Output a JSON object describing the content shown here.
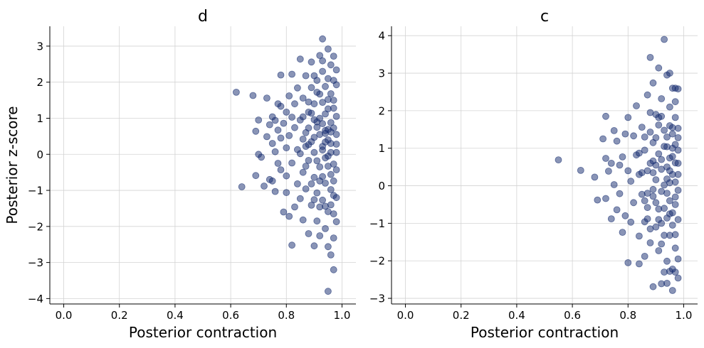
{
  "chart_data": [
    {
      "type": "scatter",
      "title": "d",
      "xlabel": "Posterior contraction",
      "ylabel": "Posterior z-score",
      "xlim": [
        -0.05,
        1.05
      ],
      "ylim": [
        -4.15,
        3.55
      ],
      "xticks": [
        0.0,
        0.2,
        0.4,
        0.6,
        0.8,
        1.0
      ],
      "xtick_labels": [
        "0.0",
        "0.2",
        "0.4",
        "0.6",
        "0.8",
        "1.0"
      ],
      "yticks": [
        -4,
        -3,
        -2,
        -1,
        0,
        1,
        2,
        3
      ],
      "ytick_labels": [
        "−4",
        "−3",
        "−2",
        "−1",
        "0",
        "1",
        "2",
        "3"
      ],
      "grid": true,
      "marker_color": "#132a6e",
      "marker_alpha": 0.5,
      "points": [
        [
          0.62,
          1.72
        ],
        [
          0.64,
          -0.9
        ],
        [
          0.68,
          1.63
        ],
        [
          0.69,
          0.64
        ],
        [
          0.69,
          -0.59
        ],
        [
          0.7,
          0.95
        ],
        [
          0.7,
          0.0
        ],
        [
          0.71,
          -0.08
        ],
        [
          0.72,
          -0.88
        ],
        [
          0.73,
          1.56
        ],
        [
          0.73,
          0.49
        ],
        [
          0.74,
          0.82
        ],
        [
          0.74,
          -0.7
        ],
        [
          0.75,
          1.04
        ],
        [
          0.75,
          0.3
        ],
        [
          0.75,
          -0.74
        ],
        [
          0.76,
          0.94
        ],
        [
          0.76,
          0.07
        ],
        [
          0.76,
          -1.03
        ],
        [
          0.77,
          1.4
        ],
        [
          0.77,
          0.67
        ],
        [
          0.77,
          -0.25
        ],
        [
          0.78,
          1.33
        ],
        [
          0.78,
          0.45
        ],
        [
          0.78,
          -0.43
        ],
        [
          0.78,
          2.2
        ],
        [
          0.79,
          -1.6
        ],
        [
          0.79,
          0.86
        ],
        [
          0.8,
          1.17
        ],
        [
          0.8,
          0.18
        ],
        [
          0.8,
          -0.6
        ],
        [
          0.8,
          -1.06
        ],
        [
          0.81,
          1.62
        ],
        [
          0.81,
          0.52
        ],
        [
          0.81,
          -1.72
        ],
        [
          0.82,
          2.22
        ],
        [
          0.82,
          1.03
        ],
        [
          0.82,
          -0.24
        ],
        [
          0.82,
          -2.52
        ],
        [
          0.83,
          0.74
        ],
        [
          0.83,
          -1.46
        ],
        [
          0.83,
          1.4
        ],
        [
          0.84,
          0.13
        ],
        [
          0.84,
          -0.82
        ],
        [
          0.84,
          1.84
        ],
        [
          0.85,
          0.95
        ],
        [
          0.85,
          -1.23
        ],
        [
          0.85,
          2.64
        ],
        [
          0.86,
          0.42
        ],
        [
          0.86,
          -0.5
        ],
        [
          0.86,
          1.56
        ],
        [
          0.86,
          -1.82
        ],
        [
          0.87,
          0.22
        ],
        [
          0.87,
          2.18
        ],
        [
          0.87,
          -0.96
        ],
        [
          0.88,
          1.17
        ],
        [
          0.88,
          -0.17
        ],
        [
          0.88,
          -2.2
        ],
        [
          0.88,
          0.73
        ],
        [
          0.89,
          1.85
        ],
        [
          0.89,
          -1.41
        ],
        [
          0.89,
          0.35
        ],
        [
          0.89,
          2.56
        ],
        [
          0.9,
          -0.64
        ],
        [
          0.9,
          1.4
        ],
        [
          0.9,
          -2.54
        ],
        [
          0.9,
          0.05
        ],
        [
          0.91,
          2.05
        ],
        [
          0.91,
          -1.07
        ],
        [
          0.91,
          0.9
        ],
        [
          0.91,
          -1.85
        ],
        [
          0.92,
          2.74
        ],
        [
          0.92,
          0.55
        ],
        [
          0.92,
          -0.35
        ],
        [
          0.92,
          1.67
        ],
        [
          0.93,
          3.2
        ],
        [
          0.93,
          -1.27
        ],
        [
          0.93,
          0.22
        ],
        [
          0.93,
          2.3
        ],
        [
          0.94,
          -0.8
        ],
        [
          0.94,
          1.12
        ],
        [
          0.94,
          -2.06
        ],
        [
          0.94,
          0.66
        ],
        [
          0.95,
          2.92
        ],
        [
          0.95,
          -0.05
        ],
        [
          0.95,
          1.52
        ],
        [
          0.95,
          -1.59
        ],
        [
          0.95,
          -2.56
        ],
        [
          0.96,
          0.88
        ],
        [
          0.96,
          -0.56
        ],
        [
          0.96,
          2.48
        ],
        [
          0.96,
          -2.79
        ],
        [
          0.96,
          0.3
        ],
        [
          0.97,
          1.28
        ],
        [
          0.97,
          -1.14
        ],
        [
          0.97,
          2.72
        ],
        [
          0.97,
          -3.2
        ],
        [
          0.97,
          -0.27
        ],
        [
          0.98,
          0.55
        ],
        [
          0.98,
          1.93
        ],
        [
          0.98,
          -1.87
        ],
        [
          0.98,
          0.05
        ],
        [
          0.98,
          2.34
        ],
        [
          0.95,
          -3.8
        ],
        [
          0.9,
          0.47
        ],
        [
          0.91,
          -0.18
        ],
        [
          0.92,
          1.0
        ],
        [
          0.93,
          -0.62
        ],
        [
          0.94,
          0.34
        ],
        [
          0.95,
          1.26
        ],
        [
          0.96,
          -0.98
        ],
        [
          0.97,
          0.73
        ],
        [
          0.98,
          -0.43
        ],
        [
          0.87,
          0.6
        ],
        [
          0.88,
          1.45
        ],
        [
          0.89,
          -0.82
        ],
        [
          0.9,
          0.96
        ],
        [
          0.91,
          1.72
        ],
        [
          0.92,
          -1.46
        ],
        [
          0.93,
          0.12
        ],
        [
          0.94,
          1.88
        ],
        [
          0.95,
          -0.33
        ],
        [
          0.96,
          0.62
        ],
        [
          0.97,
          -1.65
        ],
        [
          0.98,
          1.05
        ],
        [
          0.86,
          1.04
        ],
        [
          0.87,
          -0.33
        ],
        [
          0.88,
          0.27
        ],
        [
          0.89,
          1.14
        ],
        [
          0.9,
          -1.26
        ],
        [
          0.91,
          0.75
        ],
        [
          0.92,
          -0.74
        ],
        [
          0.93,
          1.44
        ],
        [
          0.94,
          -0.1
        ],
        [
          0.95,
          0.69
        ],
        [
          0.96,
          1.68
        ],
        [
          0.97,
          -0.74
        ],
        [
          0.98,
          0.28
        ],
        [
          0.85,
          0.02
        ],
        [
          0.9,
          2.18
        ],
        [
          0.93,
          2.59
        ],
        [
          0.95,
          2.1
        ],
        [
          0.97,
          2.05
        ],
        [
          0.94,
          -1.44
        ],
        [
          0.96,
          -1.4
        ],
        [
          0.92,
          -2.26
        ],
        [
          0.97,
          -2.32
        ],
        [
          0.93,
          0.85
        ],
        [
          0.95,
          0.4
        ],
        [
          0.96,
          0.05
        ],
        [
          0.97,
          1.5
        ],
        [
          0.98,
          -1.2
        ],
        [
          0.94,
          0.58
        ]
      ]
    },
    {
      "type": "scatter",
      "title": "c",
      "xlabel": "Posterior contraction",
      "ylabel": "",
      "xlim": [
        -0.05,
        1.05
      ],
      "ylim": [
        -3.15,
        4.25
      ],
      "xticks": [
        0.0,
        0.2,
        0.4,
        0.6,
        0.8,
        1.0
      ],
      "xtick_labels": [
        "0.0",
        "0.2",
        "0.4",
        "0.6",
        "0.8",
        "1.0"
      ],
      "yticks": [
        -3,
        -2,
        -1,
        0,
        1,
        2,
        3,
        4
      ],
      "ytick_labels": [
        "−3",
        "−2",
        "−1",
        "0",
        "1",
        "2",
        "3",
        "4"
      ],
      "grid": true,
      "marker_color": "#132a6e",
      "marker_alpha": 0.5,
      "points": [
        [
          0.55,
          0.69
        ],
        [
          0.63,
          0.41
        ],
        [
          0.68,
          0.23
        ],
        [
          0.69,
          -0.38
        ],
        [
          0.71,
          1.25
        ],
        [
          0.72,
          1.85
        ],
        [
          0.72,
          0.73
        ],
        [
          0.72,
          -0.34
        ],
        [
          0.73,
          0.39
        ],
        [
          0.74,
          -0.88
        ],
        [
          0.74,
          0.6
        ],
        [
          0.75,
          1.47
        ],
        [
          0.75,
          0.03
        ],
        [
          0.76,
          -0.64
        ],
        [
          0.76,
          1.19
        ],
        [
          0.77,
          0.55
        ],
        [
          0.77,
          -0.21
        ],
        [
          0.78,
          0.77
        ],
        [
          0.78,
          -1.24
        ],
        [
          0.79,
          1.38
        ],
        [
          0.79,
          -0.8
        ],
        [
          0.8,
          0.4
        ],
        [
          0.8,
          -2.05
        ],
        [
          0.8,
          1.82
        ],
        [
          0.81,
          0.12
        ],
        [
          0.81,
          -0.97
        ],
        [
          0.82,
          1.33
        ],
        [
          0.82,
          -0.45
        ],
        [
          0.83,
          2.13
        ],
        [
          0.83,
          0.82
        ],
        [
          0.84,
          -1.34
        ],
        [
          0.84,
          0.3
        ],
        [
          0.84,
          -2.08
        ],
        [
          0.85,
          1.56
        ],
        [
          0.85,
          -0.23
        ],
        [
          0.86,
          0.95
        ],
        [
          0.86,
          -0.96
        ],
        [
          0.86,
          -1.88
        ],
        [
          0.87,
          0.4
        ],
        [
          0.87,
          2.42
        ],
        [
          0.87,
          -0.58
        ],
        [
          0.88,
          1.95
        ],
        [
          0.88,
          -1.52
        ],
        [
          0.88,
          3.42
        ],
        [
          0.89,
          0.66
        ],
        [
          0.89,
          -0.28
        ],
        [
          0.89,
          -2.69
        ],
        [
          0.89,
          2.74
        ],
        [
          0.9,
          1.28
        ],
        [
          0.9,
          -1.1
        ],
        [
          0.9,
          0.16
        ],
        [
          0.91,
          3.14
        ],
        [
          0.91,
          -0.62
        ],
        [
          0.91,
          1.82
        ],
        [
          0.91,
          -1.73
        ],
        [
          0.92,
          2.32
        ],
        [
          0.92,
          0.44
        ],
        [
          0.92,
          -0.15
        ],
        [
          0.92,
          -2.61
        ],
        [
          0.93,
          3.9
        ],
        [
          0.93,
          1.05
        ],
        [
          0.93,
          -1.32
        ],
        [
          0.94,
          2.95
        ],
        [
          0.94,
          0.18
        ],
        [
          0.94,
          -0.86
        ],
        [
          0.94,
          -2.01
        ],
        [
          0.95,
          1.6
        ],
        [
          0.95,
          -0.4
        ],
        [
          0.95,
          0.74
        ],
        [
          0.95,
          -2.28
        ],
        [
          0.96,
          2.6
        ],
        [
          0.96,
          -1.05
        ],
        [
          0.96,
          0.3
        ],
        [
          0.96,
          1.38
        ],
        [
          0.96,
          -2.79
        ],
        [
          0.97,
          1.82
        ],
        [
          0.97,
          -0.5
        ],
        [
          0.97,
          0.61
        ],
        [
          0.97,
          -1.66
        ],
        [
          0.97,
          2.24
        ],
        [
          0.98,
          0.95
        ],
        [
          0.98,
          -0.12
        ],
        [
          0.98,
          1.53
        ],
        [
          0.98,
          -1.95
        ],
        [
          0.98,
          2.58
        ],
        [
          0.98,
          -2.46
        ],
        [
          0.94,
          -2.6
        ],
        [
          0.95,
          3.0
        ],
        [
          0.96,
          -2.22
        ],
        [
          0.88,
          0.6
        ],
        [
          0.89,
          1.15
        ],
        [
          0.9,
          -0.45
        ],
        [
          0.91,
          0.85
        ],
        [
          0.92,
          -1.0
        ],
        [
          0.93,
          1.48
        ],
        [
          0.94,
          -0.2
        ],
        [
          0.95,
          0.4
        ],
        [
          0.96,
          -0.72
        ],
        [
          0.97,
          1.1
        ],
        [
          0.98,
          0.3
        ],
        [
          0.87,
          -0.88
        ],
        [
          0.88,
          1.43
        ],
        [
          0.89,
          -0.1
        ],
        [
          0.9,
          0.55
        ],
        [
          0.91,
          1.62
        ],
        [
          0.92,
          -1.55
        ],
        [
          0.93,
          0.02
        ],
        [
          0.94,
          1.04
        ],
        [
          0.95,
          -1.32
        ],
        [
          0.96,
          0.78
        ],
        [
          0.97,
          -0.3
        ],
        [
          0.98,
          1.28
        ],
        [
          0.85,
          0.35
        ],
        [
          0.86,
          1.3
        ],
        [
          0.87,
          -0.2
        ],
        [
          0.88,
          -1.15
        ],
        [
          0.89,
          0.35
        ],
        [
          0.9,
          1.9
        ],
        [
          0.91,
          -0.9
        ],
        [
          0.92,
          0.7
        ],
        [
          0.93,
          -0.6
        ],
        [
          0.94,
          1.3
        ],
        [
          0.95,
          0.08
        ],
        [
          0.96,
          1.55
        ],
        [
          0.97,
          -1.3
        ],
        [
          0.98,
          0.6
        ],
        [
          0.84,
          0.87
        ],
        [
          0.86,
          -0.4
        ],
        [
          0.92,
          1.85
        ],
        [
          0.95,
          2.1
        ],
        [
          0.97,
          2.6
        ],
        [
          0.93,
          -2.3
        ],
        [
          0.97,
          -2.3
        ],
        [
          0.94,
          0.5
        ],
        [
          0.95,
          -0.75
        ],
        [
          0.96,
          1.0
        ],
        [
          0.97,
          0.1
        ],
        [
          0.98,
          -0.9
        ]
      ]
    }
  ]
}
